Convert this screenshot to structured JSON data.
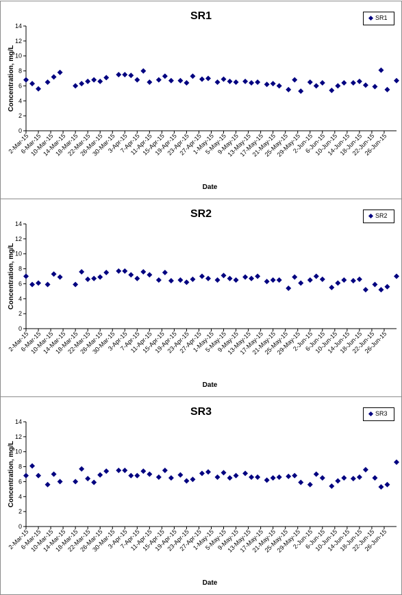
{
  "chart_data": [
    {
      "type": "scatter",
      "title": "SR1",
      "xlabel": "Date",
      "ylabel": "Concentration, mg/L",
      "ylim": [
        0,
        14
      ],
      "yticks": [
        0,
        2,
        4,
        6,
        8,
        10,
        12,
        14
      ],
      "xlim": [
        "2015-03-02",
        "2015-06-30"
      ],
      "xtick_labels": [
        "2-Mar-15",
        "6-Mar-15",
        "10-Mar-15",
        "14-Mar-15",
        "18-Mar-15",
        "22-Mar-15",
        "26-Mar-15",
        "30-Mar-15",
        "3-Apr-15",
        "7-Apr-15",
        "11-Apr-15",
        "15-Apr-15",
        "19-Apr-15",
        "23-Apr-15",
        "27-Apr-15",
        "1-May-15",
        "5-May-15",
        "9-May-15",
        "13-May-15",
        "17-May-15",
        "21-May-15",
        "25-May-15",
        "29-May-15",
        "2-Jun-15",
        "6-Jun-15",
        "10-Jun-15",
        "14-Jun-15",
        "18-Jun-15",
        "22-Jun-15",
        "26-Jun-15"
      ],
      "legend": "top-right",
      "marker_color": "#000080",
      "series": [
        {
          "name": "SR1",
          "x": [
            "2015-03-02",
            "2015-03-04",
            "2015-03-06",
            "2015-03-09",
            "2015-03-11",
            "2015-03-13",
            "2015-03-18",
            "2015-03-20",
            "2015-03-22",
            "2015-03-24",
            "2015-03-26",
            "2015-03-28",
            "2015-04-01",
            "2015-04-03",
            "2015-04-05",
            "2015-04-07",
            "2015-04-09",
            "2015-04-11",
            "2015-04-14",
            "2015-04-16",
            "2015-04-18",
            "2015-04-21",
            "2015-04-23",
            "2015-04-25",
            "2015-04-28",
            "2015-04-30",
            "2015-05-03",
            "2015-05-05",
            "2015-05-07",
            "2015-05-09",
            "2015-05-12",
            "2015-05-14",
            "2015-05-16",
            "2015-05-19",
            "2015-05-21",
            "2015-05-23",
            "2015-05-26",
            "2015-05-28",
            "2015-05-30",
            "2015-06-02",
            "2015-06-04",
            "2015-06-06",
            "2015-06-09",
            "2015-06-11",
            "2015-06-13",
            "2015-06-16",
            "2015-06-18",
            "2015-06-20",
            "2015-06-23",
            "2015-06-25",
            "2015-06-27",
            "2015-06-30"
          ],
          "y": [
            6.8,
            6.3,
            5.6,
            6.5,
            7.2,
            7.8,
            6.0,
            6.3,
            6.6,
            6.8,
            6.6,
            7.1,
            7.5,
            7.5,
            7.4,
            6.8,
            8.0,
            6.5,
            6.8,
            7.3,
            6.7,
            6.7,
            6.4,
            7.3,
            6.9,
            7.0,
            6.5,
            6.9,
            6.6,
            6.5,
            6.6,
            6.4,
            6.5,
            6.2,
            6.3,
            6.0,
            5.5,
            6.8,
            5.3,
            6.5,
            6.0,
            6.4,
            5.4,
            6.0,
            6.4,
            6.4,
            6.6,
            6.1,
            5.9,
            8.1,
            5.5,
            6.7
          ]
        }
      ]
    },
    {
      "type": "scatter",
      "title": "SR2",
      "xlabel": "Date",
      "ylabel": "Concentration, mg/L",
      "ylim": [
        0,
        14
      ],
      "yticks": [
        0,
        2,
        4,
        6,
        8,
        10,
        12,
        14
      ],
      "xlim": [
        "2015-03-02",
        "2015-06-30"
      ],
      "xtick_labels": [
        "2-Mar-15",
        "6-Mar-15",
        "10-Mar-15",
        "14-Mar-15",
        "18-Mar-15",
        "22-Mar-15",
        "26-Mar-15",
        "30-Mar-15",
        "3-Apr-15",
        "7-Apr-15",
        "11-Apr-15",
        "15-Apr-15",
        "19-Apr-15",
        "23-Apr-15",
        "27-Apr-15",
        "1-May-15",
        "5-May-15",
        "9-May-15",
        "13-May-15",
        "17-May-15",
        "21-May-15",
        "25-May-15",
        "29-May-15",
        "2-Jun-15",
        "6-Jun-15",
        "10-Jun-15",
        "14-Jun-15",
        "18-Jun-15",
        "22-Jun-15",
        "26-Jun-15"
      ],
      "legend": "top-right",
      "marker_color": "#000080",
      "series": [
        {
          "name": "SR2",
          "x": [
            "2015-03-02",
            "2015-03-04",
            "2015-03-06",
            "2015-03-09",
            "2015-03-11",
            "2015-03-13",
            "2015-03-18",
            "2015-03-20",
            "2015-03-22",
            "2015-03-24",
            "2015-03-26",
            "2015-03-28",
            "2015-04-01",
            "2015-04-03",
            "2015-04-05",
            "2015-04-07",
            "2015-04-09",
            "2015-04-11",
            "2015-04-14",
            "2015-04-16",
            "2015-04-18",
            "2015-04-21",
            "2015-04-23",
            "2015-04-25",
            "2015-04-28",
            "2015-04-30",
            "2015-05-03",
            "2015-05-05",
            "2015-05-07",
            "2015-05-09",
            "2015-05-12",
            "2015-05-14",
            "2015-05-16",
            "2015-05-19",
            "2015-05-21",
            "2015-05-23",
            "2015-05-26",
            "2015-05-28",
            "2015-05-30",
            "2015-06-02",
            "2015-06-04",
            "2015-06-06",
            "2015-06-09",
            "2015-06-11",
            "2015-06-13",
            "2015-06-16",
            "2015-06-18",
            "2015-06-20",
            "2015-06-23",
            "2015-06-25",
            "2015-06-27",
            "2015-06-30"
          ],
          "y": [
            7.0,
            5.9,
            6.1,
            5.9,
            7.3,
            6.9,
            5.9,
            7.6,
            6.6,
            6.7,
            6.9,
            7.5,
            7.7,
            7.7,
            7.2,
            6.7,
            7.6,
            7.2,
            6.5,
            7.5,
            6.4,
            6.5,
            6.2,
            6.6,
            7.0,
            6.7,
            6.5,
            7.1,
            6.7,
            6.5,
            6.9,
            6.7,
            7.0,
            6.3,
            6.5,
            6.5,
            5.4,
            6.9,
            6.1,
            6.5,
            7.0,
            6.6,
            5.5,
            6.1,
            6.5,
            6.4,
            6.6,
            5.2,
            5.9,
            5.2,
            5.6,
            7.0
          ]
        }
      ]
    },
    {
      "type": "scatter",
      "title": "SR3",
      "xlabel": "Date",
      "ylabel": "Concentration, mg/L",
      "ylim": [
        0,
        14
      ],
      "yticks": [
        0,
        2,
        4,
        6,
        8,
        10,
        12,
        14
      ],
      "xlim": [
        "2015-03-02",
        "2015-06-30"
      ],
      "xtick_labels": [
        "2-Mar-15",
        "6-Mar-15",
        "10-Mar-15",
        "14-Mar-15",
        "18-Mar-15",
        "22-Mar-15",
        "26-Mar-15",
        "30-Mar-15",
        "3-Apr-15",
        "7-Apr-15",
        "11-Apr-15",
        "15-Apr-15",
        "19-Apr-15",
        "23-Apr-15",
        "27-Apr-15",
        "1-May-15",
        "5-May-15",
        "9-May-15",
        "13-May-15",
        "17-May-15",
        "21-May-15",
        "25-May-15",
        "29-May-15",
        "2-Jun-15",
        "6-Jun-15",
        "10-Jun-15",
        "14-Jun-15",
        "18-Jun-15",
        "22-Jun-15",
        "26-Jun-15"
      ],
      "legend": "top-right",
      "marker_color": "#000080",
      "series": [
        {
          "name": "SR3",
          "x": [
            "2015-03-02",
            "2015-03-04",
            "2015-03-06",
            "2015-03-09",
            "2015-03-11",
            "2015-03-13",
            "2015-03-18",
            "2015-03-20",
            "2015-03-22",
            "2015-03-24",
            "2015-03-26",
            "2015-03-28",
            "2015-04-01",
            "2015-04-03",
            "2015-04-05",
            "2015-04-07",
            "2015-04-09",
            "2015-04-11",
            "2015-04-14",
            "2015-04-16",
            "2015-04-18",
            "2015-04-21",
            "2015-04-23",
            "2015-04-25",
            "2015-04-28",
            "2015-04-30",
            "2015-05-03",
            "2015-05-05",
            "2015-05-07",
            "2015-05-09",
            "2015-05-12",
            "2015-05-14",
            "2015-05-16",
            "2015-05-19",
            "2015-05-21",
            "2015-05-23",
            "2015-05-26",
            "2015-05-28",
            "2015-05-30",
            "2015-06-02",
            "2015-06-04",
            "2015-06-06",
            "2015-06-09",
            "2015-06-11",
            "2015-06-13",
            "2015-06-16",
            "2015-06-18",
            "2015-06-20",
            "2015-06-23",
            "2015-06-25",
            "2015-06-27",
            "2015-06-30"
          ],
          "y": [
            6.8,
            8.1,
            6.8,
            5.6,
            7.0,
            6.0,
            6.0,
            7.7,
            6.4,
            5.9,
            6.9,
            7.4,
            7.5,
            7.5,
            6.8,
            6.8,
            7.4,
            7.0,
            6.6,
            7.5,
            6.5,
            6.9,
            6.1,
            6.3,
            7.1,
            7.3,
            6.6,
            7.2,
            6.5,
            6.8,
            7.1,
            6.6,
            6.6,
            6.2,
            6.5,
            6.6,
            6.7,
            6.8,
            5.9,
            5.6,
            7.0,
            6.5,
            5.4,
            6.1,
            6.5,
            6.4,
            6.6,
            7.6,
            6.5,
            5.3,
            5.6,
            8.6
          ]
        }
      ]
    }
  ]
}
